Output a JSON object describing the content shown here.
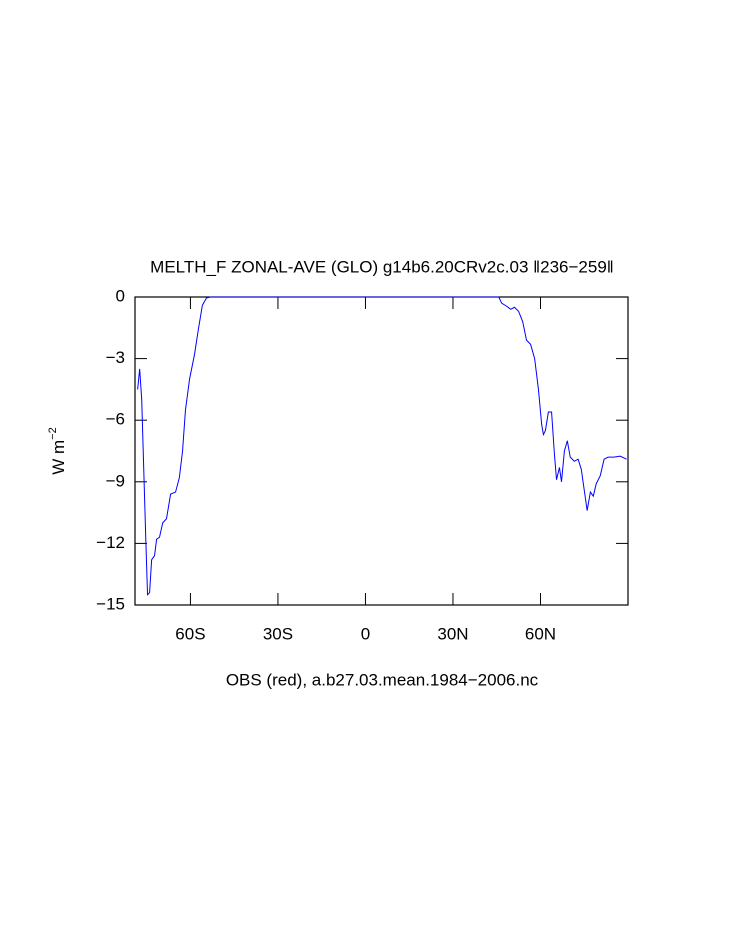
{
  "chart_data": {
    "type": "line",
    "title": "MELTH_F ZONAL-AVE (GLO) g14b6.20CRv2c.03 ‖236−259‖",
    "ylabel": {
      "base": "W m",
      "sup": "−2"
    },
    "caption": "OBS (red), a.b27.03.mean.1984−2006.nc",
    "xlim": [
      -79,
      90
    ],
    "ylim": [
      -15,
      0
    ],
    "xticks": [
      {
        "value": -60,
        "label": "60S"
      },
      {
        "value": -30,
        "label": "30S"
      },
      0,
      {
        "value": 30,
        "label": "30N"
      },
      {
        "value": 60,
        "label": "60N"
      }
    ],
    "yticks": [
      {
        "value": -15,
        "label": "−15"
      },
      {
        "value": -12,
        "label": "−12"
      },
      {
        "value": -9,
        "label": "−9"
      },
      {
        "value": -6,
        "label": "−6"
      },
      {
        "value": -3,
        "label": "−3"
      },
      0
    ],
    "x": [
      -78.1,
      -77.4,
      -76.7,
      -76,
      -75.3,
      -74.7,
      -74,
      -73.3,
      -72.3,
      -71.6,
      -70.6,
      -69.5,
      -68.2,
      -66.8,
      -65.1,
      -63.8,
      -62.7,
      -61.7,
      -60.3,
      -58.6,
      -57.3,
      -55.9,
      -54.5,
      -53.2,
      -50,
      0,
      45,
      45.7,
      46.7,
      48.4,
      49.8,
      51.1,
      52.5,
      53.9,
      55.2,
      56.6,
      58,
      59.3,
      60.4,
      61,
      61.7,
      62.7,
      63.8,
      64.8,
      65.5,
      66.5,
      67.2,
      68.2,
      69.2,
      70.2,
      71.6,
      72.9,
      74,
      75,
      76,
      77.1,
      78.1,
      79.1,
      80.5,
      81.8,
      83.2,
      85.2,
      87.3,
      89.5
    ],
    "series": [
      {
        "color": "#0000ff",
        "values": [
          -4.5,
          -3.5,
          -5.0,
          -8.4,
          -11.8,
          -14.5,
          -14.4,
          -12.8,
          -12.6,
          -11.8,
          -11.7,
          -11.0,
          -10.8,
          -9.6,
          -9.5,
          -8.8,
          -7.5,
          -5.5,
          -4.0,
          -2.8,
          -1.6,
          -0.4,
          -0.05,
          0,
          0,
          0,
          0,
          0,
          -0.3,
          -0.45,
          -0.6,
          -0.5,
          -0.7,
          -1.2,
          -2.1,
          -2.3,
          -3.0,
          -4.5,
          -6.2,
          -6.7,
          -6.5,
          -5.6,
          -5.6,
          -7.7,
          -8.9,
          -8.3,
          -9.0,
          -7.5,
          -7.0,
          -7.8,
          -8.0,
          -7.9,
          -8.4,
          -9.4,
          -10.4,
          -9.5,
          -9.7,
          -9.1,
          -8.7,
          -7.9,
          -7.8,
          -7.8,
          -7.75,
          -7.9
        ]
      }
    ]
  }
}
